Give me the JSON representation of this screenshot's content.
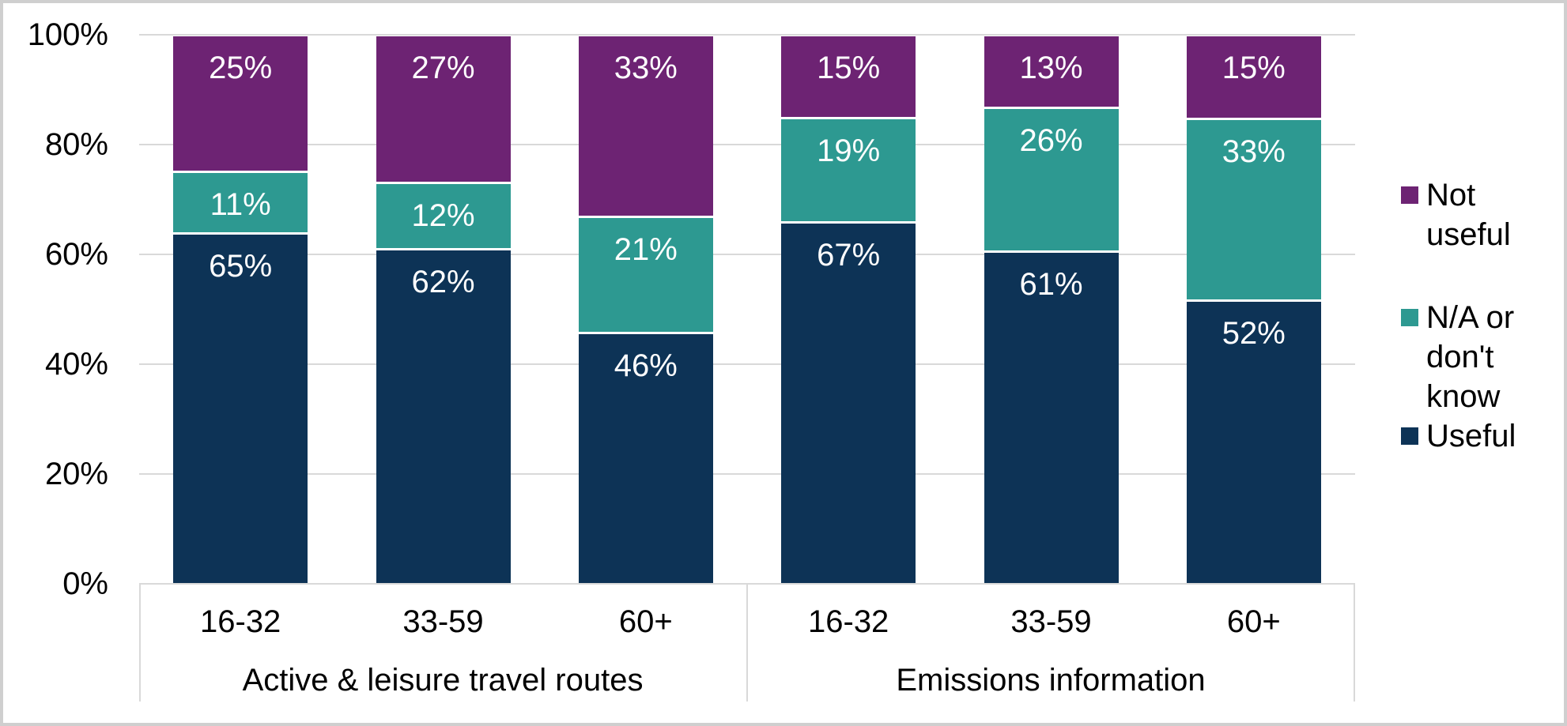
{
  "chart_data": {
    "type": "bar",
    "subtype": "stacked-100-percent",
    "title": "",
    "groups": [
      {
        "label": "Active & leisure travel routes",
        "categories": [
          "16-32",
          "33-59",
          "60+"
        ]
      },
      {
        "label": "Emissions information",
        "categories": [
          "16-32",
          "33-59",
          "60+"
        ]
      }
    ],
    "categories_flat": [
      "16-32",
      "33-59",
      "60+",
      "16-32",
      "33-59",
      "60+"
    ],
    "series": [
      {
        "name": "Useful",
        "color": "#0D3356",
        "values": [
          65,
          62,
          46,
          67,
          61,
          52
        ]
      },
      {
        "name": "N/A or don't know",
        "color": "#2D9991",
        "values": [
          11,
          12,
          21,
          19,
          26,
          33
        ]
      },
      {
        "name": "Not useful",
        "color": "#6D2373",
        "values": [
          25,
          27,
          33,
          15,
          13,
          15
        ]
      }
    ],
    "data_labels": {
      "Useful": [
        "65%",
        "62%",
        "46%",
        "67%",
        "61%",
        "52%"
      ],
      "N/A or don't know": [
        "11%",
        "12%",
        "21%",
        "19%",
        "26%",
        "33%"
      ],
      "Not useful": [
        "25%",
        "27%",
        "33%",
        "15%",
        "13%",
        "15%"
      ]
    },
    "value_suffix": "%",
    "y_axis": {
      "ticks": [
        "0%",
        "20%",
        "40%",
        "60%",
        "80%",
        "100%"
      ],
      "lim": [
        0,
        100
      ],
      "grid": true
    },
    "legend": {
      "position": "right",
      "order_top_to_bottom": [
        "Not useful",
        "N/A or don't know",
        "Useful"
      ]
    },
    "style_colors": {
      "grid": "#D9D9D9",
      "axis_box": "#D9D9D9",
      "frame_border": "#CFCFCF",
      "data_label_text": "#FFFFFF",
      "axis_text": "#000000"
    }
  }
}
